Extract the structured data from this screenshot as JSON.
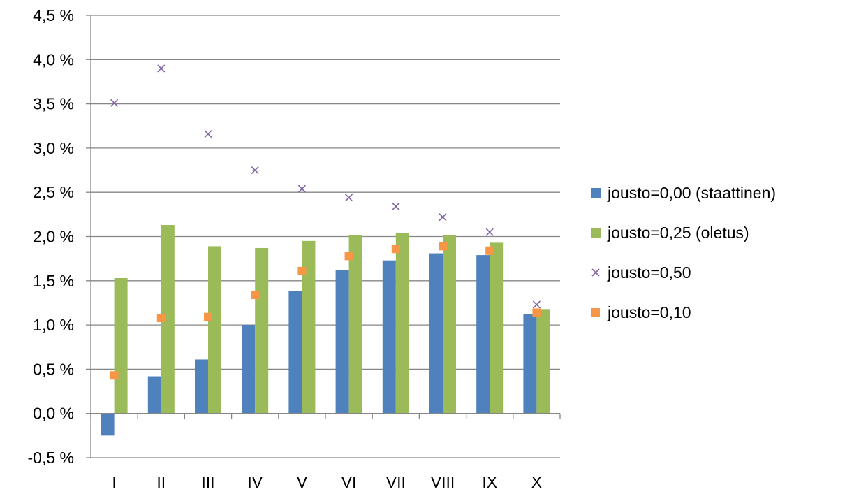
{
  "chart_data": {
    "type": "bar",
    "categories": [
      "I",
      "II",
      "III",
      "IV",
      "V",
      "VI",
      "VII",
      "VIII",
      "IX",
      "X"
    ],
    "ylim": [
      -0.5,
      4.5
    ],
    "yticks": [
      -0.5,
      0.0,
      0.5,
      1.0,
      1.5,
      2.0,
      2.5,
      3.0,
      3.5,
      4.0,
      4.5
    ],
    "ytick_labels": [
      "-0,5 %",
      "0,0 %",
      "0,5 %",
      "1,0 %",
      "1,5 %",
      "2,0 %",
      "2,5 %",
      "3,0 %",
      "3,5 %",
      "4,0 %",
      "4,5 %"
    ],
    "grid": true,
    "legend_position": "right",
    "series": [
      {
        "name": "jousto=0,00 (staattinen)",
        "type": "bar",
        "color": "#4F81BD",
        "values": [
          -0.25,
          0.42,
          0.61,
          1.0,
          1.38,
          1.62,
          1.73,
          1.81,
          1.79,
          1.12
        ]
      },
      {
        "name": "jousto=0,25 (oletus)",
        "type": "bar",
        "color": "#9BBB59",
        "values": [
          1.53,
          2.13,
          1.89,
          1.87,
          1.95,
          2.02,
          2.04,
          2.02,
          1.93,
          1.18
        ]
      },
      {
        "name": "jousto=0,50",
        "type": "scatter",
        "marker": "x",
        "color": "#8064A2",
        "values": [
          3.51,
          3.9,
          3.16,
          2.75,
          2.54,
          2.44,
          2.34,
          2.22,
          2.05,
          1.23
        ]
      },
      {
        "name": "jousto=0,10",
        "type": "scatter",
        "marker": "square",
        "color": "#F79646",
        "values": [
          0.43,
          1.08,
          1.09,
          1.34,
          1.61,
          1.78,
          1.86,
          1.89,
          1.84,
          1.14
        ]
      }
    ]
  }
}
